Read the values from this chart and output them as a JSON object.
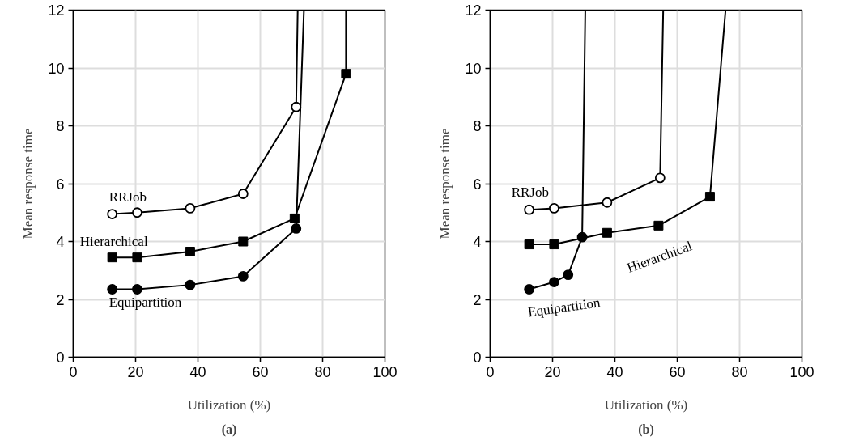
{
  "chart_data": [
    {
      "type": "line",
      "title": "(a)",
      "xlabel": "Utilization (%)",
      "ylabel": "Mean response time",
      "xlim": [
        0,
        100
      ],
      "ylim": [
        0,
        12
      ],
      "xticks": [
        0,
        20,
        40,
        60,
        80,
        100
      ],
      "yticks": [
        0,
        2,
        4,
        6,
        8,
        10,
        12
      ],
      "grid": true,
      "line_style": "solid",
      "series": [
        {
          "name": "RRJob",
          "color": "#000000",
          "marker": "circle",
          "x": [
            12.5,
            20.5,
            37.5,
            54.5,
            71.5,
            72
          ],
          "values": [
            4.95,
            5.0,
            5.15,
            5.65,
            8.65,
            12
          ]
        },
        {
          "name": "Hierarchical",
          "color": "#000000",
          "marker": "square",
          "x": [
            12.5,
            20.5,
            37.5,
            54.5,
            71,
            87.5,
            87.5
          ],
          "values": [
            3.45,
            3.45,
            3.65,
            4.0,
            4.8,
            9.8,
            12
          ]
        },
        {
          "name": "Equipartition",
          "color": "#000000",
          "marker": "circle",
          "x": [
            12.5,
            20.5,
            37.5,
            54.5,
            71.5,
            74
          ],
          "values": [
            2.35,
            2.35,
            2.5,
            2.8,
            4.45,
            12
          ]
        }
      ]
    },
    {
      "type": "line",
      "title": "(b)",
      "xlabel": "Utilization (%)",
      "ylabel": "Mean response time",
      "xlim": [
        0,
        100
      ],
      "ylim": [
        0,
        12
      ],
      "xticks": [
        0,
        20,
        40,
        60,
        80,
        100
      ],
      "yticks": [
        0,
        2,
        4,
        6,
        8,
        10,
        12
      ],
      "grid": true,
      "line_style": "solid",
      "series": [
        {
          "name": "RRJob",
          "color": "#000000",
          "marker": "circle",
          "x": [
            12.5,
            20.5,
            37.5,
            54.5,
            55.5
          ],
          "values": [
            5.1,
            5.15,
            5.35,
            6.2,
            12
          ]
        },
        {
          "name": "Hierarchical",
          "color": "#000000",
          "marker": "square",
          "x": [
            12.5,
            20.5,
            37.5,
            54,
            70.5,
            75.5
          ],
          "values": [
            3.9,
            3.9,
            4.3,
            4.55,
            5.55,
            12
          ]
        },
        {
          "name": "Equipartition",
          "color": "#000000",
          "marker": "circle",
          "x": [
            12.5,
            20.5,
            25,
            29.5,
            30.5
          ],
          "values": [
            2.35,
            2.6,
            2.85,
            4.15,
            12
          ]
        }
      ]
    }
  ]
}
